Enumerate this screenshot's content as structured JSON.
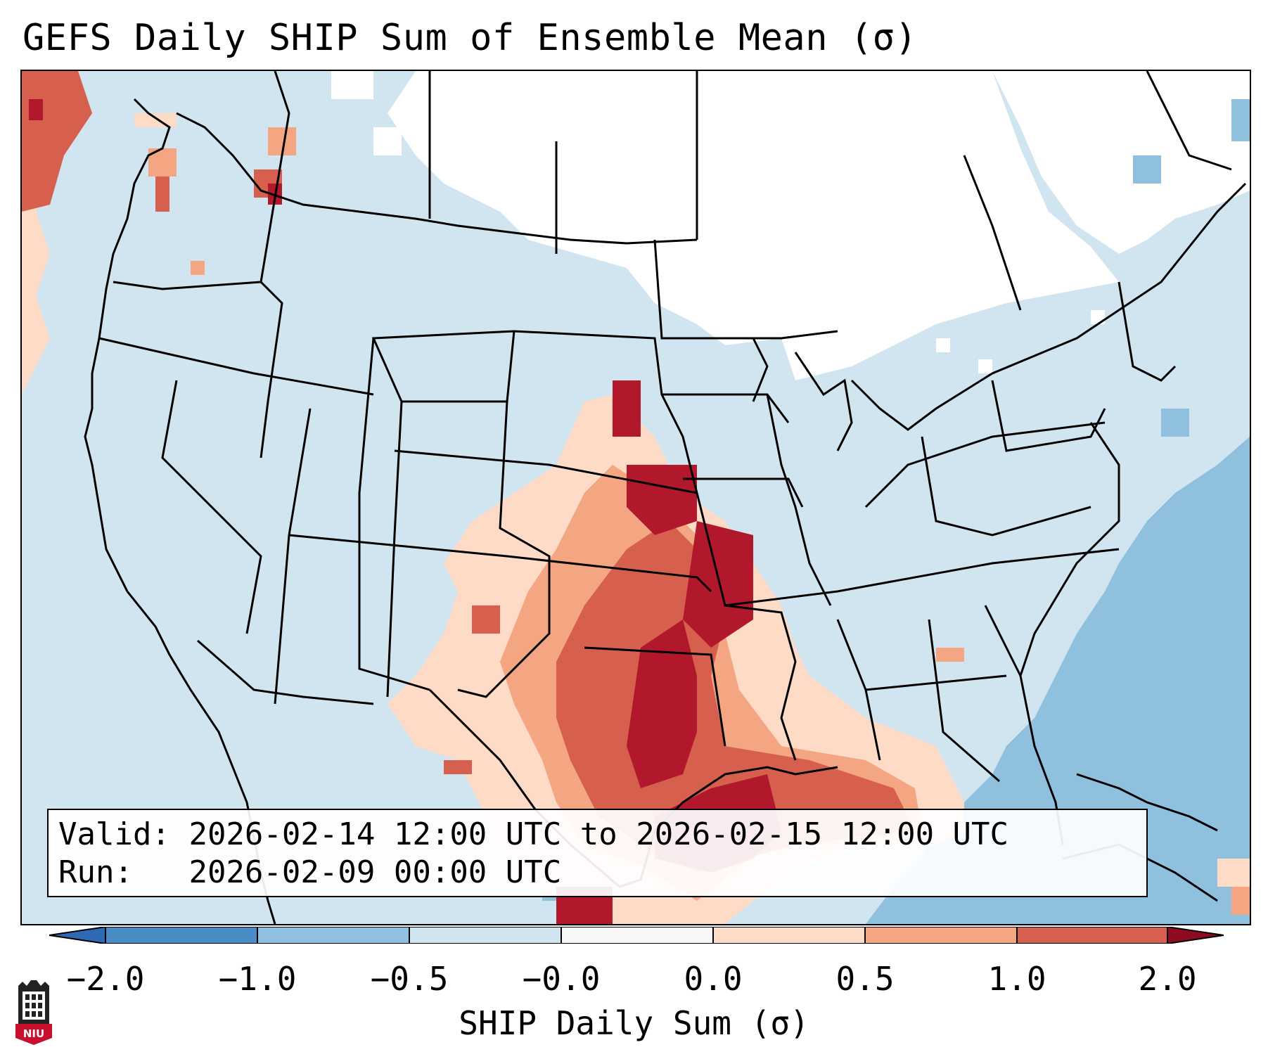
{
  "title": "GEFS Daily SHIP Sum of Ensemble Mean (σ)",
  "info": {
    "valid_label": "Valid:",
    "valid_value": "2026-02-14 12:00 UTC to 2026-02-15 12:00 UTC",
    "run_label": "Run:",
    "run_value": "2026-02-09 00:00 UTC"
  },
  "colorbar": {
    "label": "SHIP Daily Sum (σ)",
    "ticks": [
      "−2.0",
      "−1.0",
      "−0.5",
      "−0.0",
      "0.0",
      "0.5",
      "1.0",
      "2.0"
    ],
    "colors": [
      "#4a8cc6",
      "#8fc1de",
      "#d1e5f0",
      "#f7f7f7",
      "#fddbc7",
      "#f4a582",
      "#d6604d",
      "#b2182b"
    ],
    "under_color": "#2e6ab3",
    "over_color": "#8e0b21"
  },
  "colors": {
    "land_background": "#d1e5f0",
    "ocean_background": "#d1e5f0",
    "atlantic_negative": "#8fc1de",
    "north_neutral": "#ffffff",
    "positive_light": "#fddbc7",
    "positive_mid": "#f4a582",
    "positive_strong": "#d6604d",
    "positive_max": "#b2182b",
    "border": "#000000"
  },
  "logo": {
    "text": "NIU",
    "color": "#c8102e"
  }
}
